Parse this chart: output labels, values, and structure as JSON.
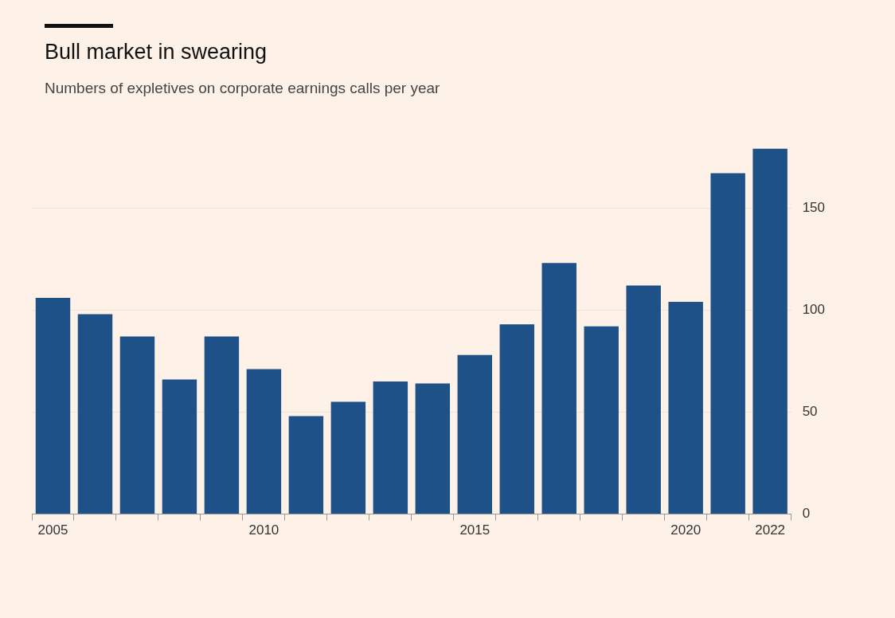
{
  "chart_data": {
    "type": "bar",
    "title": "Bull market in swearing",
    "subtitle": "Numbers of expletives on corporate earnings calls per year",
    "categories": [
      "2005",
      null,
      null,
      null,
      null,
      "2010",
      null,
      null,
      null,
      null,
      "2015",
      null,
      null,
      null,
      null,
      "2020",
      null,
      "2022"
    ],
    "values": [
      106,
      98,
      87,
      66,
      87,
      71,
      48,
      55,
      65,
      64,
      78,
      93,
      123,
      92,
      112,
      104,
      167,
      179
    ],
    "color": "#1f5189",
    "ylim": [
      0,
      180
    ],
    "yticks": [
      0,
      50,
      100,
      150
    ],
    "grid": "y"
  }
}
